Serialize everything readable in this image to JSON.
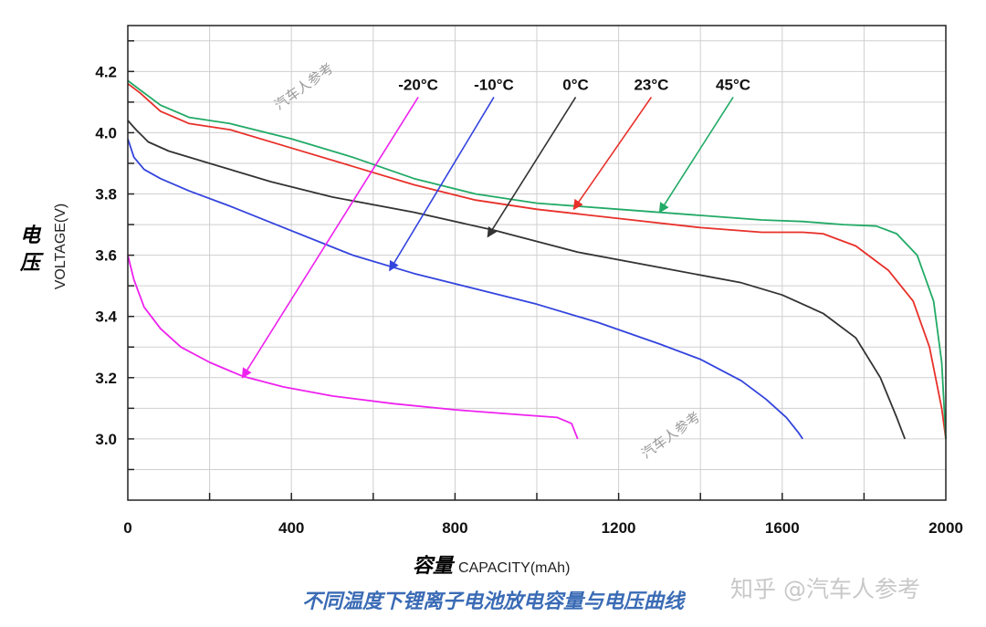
{
  "chart_data": {
    "type": "line",
    "title": "",
    "ylabel_cn": "电压",
    "ylabel": "VOLTAGE(V)",
    "xlabel_cn": "容量",
    "xlabel": "CAPACITY(mAh)",
    "xlim": [
      0,
      2000
    ],
    "ylim": [
      2.8,
      4.35
    ],
    "x_ticks": [
      0,
      400,
      800,
      1200,
      1600,
      2000
    ],
    "y_ticks": [
      "3.0",
      "3.2",
      "3.4",
      "3.6",
      "3.8",
      "4.0",
      "4.2"
    ],
    "grid": true,
    "series": [
      {
        "name": "-20°C",
        "color": "#ee22ee",
        "x": [
          0,
          15,
          40,
          80,
          130,
          200,
          280,
          380,
          500,
          650,
          800,
          950,
          1050,
          1085,
          1100
        ],
        "y": [
          3.6,
          3.52,
          3.43,
          3.36,
          3.3,
          3.25,
          3.205,
          3.17,
          3.14,
          3.115,
          3.095,
          3.08,
          3.07,
          3.05,
          3.0
        ]
      },
      {
        "name": "-10°C",
        "color": "#3344dd",
        "x": [
          0,
          15,
          40,
          80,
          150,
          250,
          400,
          550,
          700,
          850,
          1000,
          1150,
          1300,
          1400,
          1500,
          1560,
          1610,
          1640,
          1650
        ],
        "y": [
          3.98,
          3.92,
          3.88,
          3.85,
          3.81,
          3.76,
          3.68,
          3.6,
          3.54,
          3.49,
          3.44,
          3.38,
          3.31,
          3.26,
          3.19,
          3.13,
          3.07,
          3.02,
          3.0
        ]
      },
      {
        "name": "0°C",
        "color": "#333333",
        "x": [
          0,
          20,
          50,
          100,
          200,
          350,
          500,
          700,
          900,
          1100,
          1300,
          1500,
          1600,
          1700,
          1780,
          1840,
          1880,
          1900
        ],
        "y": [
          4.04,
          4.01,
          3.97,
          3.94,
          3.9,
          3.84,
          3.79,
          3.74,
          3.68,
          3.61,
          3.56,
          3.51,
          3.47,
          3.41,
          3.33,
          3.2,
          3.07,
          3.0
        ]
      },
      {
        "name": "23°C",
        "color": "#e8302a",
        "x": [
          0,
          30,
          80,
          150,
          250,
          400,
          550,
          700,
          850,
          1000,
          1200,
          1400,
          1550,
          1650,
          1700,
          1780,
          1860,
          1920,
          1960,
          1990,
          2000
        ],
        "y": [
          4.16,
          4.13,
          4.07,
          4.03,
          4.01,
          3.95,
          3.89,
          3.83,
          3.78,
          3.75,
          3.72,
          3.69,
          3.675,
          3.675,
          3.67,
          3.63,
          3.55,
          3.45,
          3.3,
          3.1,
          3.0
        ]
      },
      {
        "name": "45°C",
        "color": "#22aa66",
        "x": [
          0,
          30,
          80,
          150,
          250,
          400,
          550,
          700,
          850,
          1000,
          1200,
          1400,
          1550,
          1650,
          1750,
          1830,
          1880,
          1930,
          1970,
          1990,
          2000
        ],
        "y": [
          4.17,
          4.14,
          4.09,
          4.05,
          4.03,
          3.98,
          3.92,
          3.85,
          3.8,
          3.77,
          3.75,
          3.73,
          3.715,
          3.71,
          3.7,
          3.695,
          3.67,
          3.6,
          3.45,
          3.25,
          3.0
        ]
      }
    ],
    "annotations": [
      {
        "label": "-20°C",
        "text_at": [
          710,
          4.14
        ],
        "arrow_to": [
          280,
          3.2
        ]
      },
      {
        "label": "-10°C",
        "text_at": [
          895,
          4.14
        ],
        "arrow_to": [
          640,
          3.55
        ]
      },
      {
        "label": "0°C",
        "text_at": [
          1095,
          4.14
        ],
        "arrow_to": [
          880,
          3.66
        ]
      },
      {
        "label": "23°C",
        "text_at": [
          1280,
          4.14
        ],
        "arrow_to": [
          1090,
          3.75
        ]
      },
      {
        "label": "45°C",
        "text_at": [
          1480,
          4.14
        ],
        "arrow_to": [
          1300,
          3.74
        ]
      }
    ]
  },
  "caption": "不同温度下锂离子电池放电容量与电压曲线",
  "watermark_text": "汽车人参考",
  "brand": "知乎 @汽车人参考"
}
